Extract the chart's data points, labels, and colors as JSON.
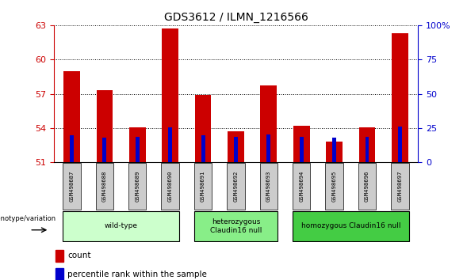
{
  "title": "GDS3612 / ILMN_1216566",
  "samples": [
    "GSM498687",
    "GSM498688",
    "GSM498689",
    "GSM498690",
    "GSM498691",
    "GSM498692",
    "GSM498693",
    "GSM498694",
    "GSM498695",
    "GSM498696",
    "GSM498697"
  ],
  "red_values": [
    59.0,
    57.3,
    54.1,
    62.7,
    56.9,
    53.7,
    57.7,
    54.2,
    52.8,
    54.1,
    62.3
  ],
  "blue_values": [
    53.4,
    53.2,
    53.25,
    54.1,
    53.35,
    53.25,
    53.45,
    53.25,
    53.15,
    53.25,
    54.15
  ],
  "baseline": 51,
  "ylim_left": [
    51,
    63
  ],
  "yticks_left": [
    51,
    54,
    57,
    60,
    63
  ],
  "ylim_right": [
    0,
    100
  ],
  "yticks_right": [
    0,
    25,
    50,
    75,
    100
  ],
  "groups": [
    {
      "label": "wild-type",
      "start": 0,
      "end": 3,
      "color": "#ccffcc"
    },
    {
      "label": "heterozygous\nClaudin16 null",
      "start": 4,
      "end": 6,
      "color": "#88ee88"
    },
    {
      "label": "homozygous Claudin16 null",
      "start": 7,
      "end": 10,
      "color": "#44cc44"
    }
  ],
  "red_bar_width": 0.5,
  "blue_bar_width": 0.12,
  "red_color": "#cc0000",
  "blue_color": "#0000cc",
  "axis_color_left": "#cc0000",
  "axis_color_right": "#0000cc",
  "legend_red": "count",
  "legend_blue": "percentile rank within the sample",
  "genotype_label": "genotype/variation",
  "sample_box_color": "#cccccc",
  "title_fontsize": 10
}
